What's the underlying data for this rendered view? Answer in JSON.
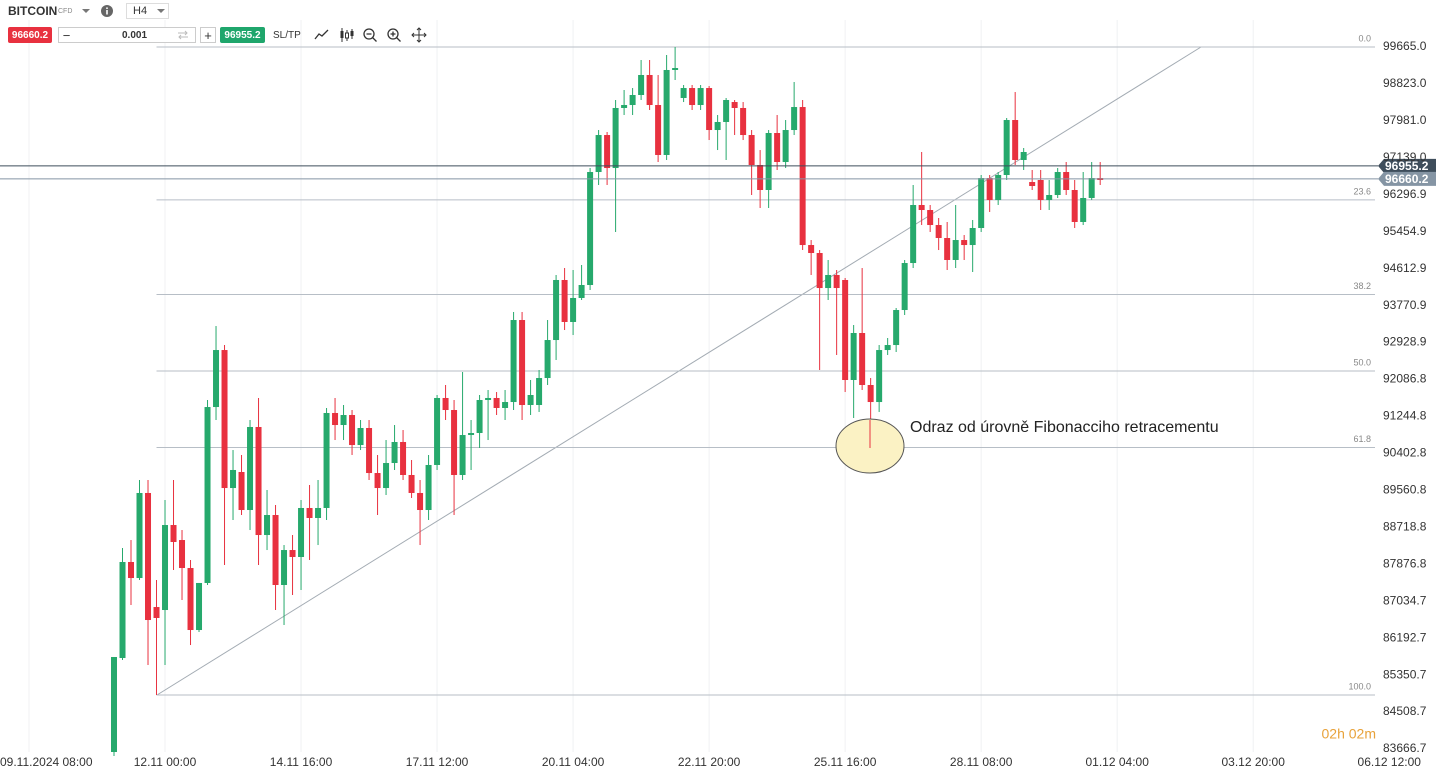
{
  "chart_data": {
    "type": "candlestick",
    "up_color": "#26a96c",
    "down_color": "#e8313f",
    "open": [
      83598,
      85740,
      87928,
      87563,
      89501,
      86902,
      86834,
      88771,
      88429,
      87791,
      86378,
      87450,
      91460,
      92759,
      89614,
      89979,
      89113,
      91005,
      88543,
      88999,
      87404,
      88201,
      88042,
      89159,
      88931,
      89159,
      91324,
      91050,
      91278,
      90594,
      90982,
      89956,
      89614,
      90184,
      90663,
      89911,
      89501,
      89113,
      90139,
      91666,
      91392,
      89911,
      90822,
      90868,
      91620,
      91666,
      91438,
      91574,
      93443,
      91506,
      91506,
      92121,
      92987,
      94355,
      93398,
      93945,
      94241,
      96816,
      97659,
      96907,
      98275,
      98343,
      98571,
      99027,
      98343,
      97204,
      99141,
      98503,
      98730,
      98343,
      98730,
      97773,
      97956,
      98411,
      98275,
      97659,
      96976,
      96406,
      97705,
      97044,
      97773,
      98297,
      95152,
      94970,
      94172,
      94469,
      94355,
      92076,
      93147,
      91962,
      91574,
      92759,
      92873,
      93671,
      94742,
      96064,
      95950,
      95608,
      95312,
      94811,
      95266,
      95152,
      95540,
      96679,
      96178,
      96748,
      98001,
      97090,
      96588,
      96634,
      96178,
      96292,
      96816,
      96406,
      95677,
      96224,
      96679
    ],
    "high": [
      85763,
      88247,
      88429,
      89797,
      89797,
      87518,
      89341,
      89797,
      88657,
      87974,
      87450,
      91620,
      93306,
      92873,
      90480,
      90367,
      91164,
      91666,
      89569,
      89227,
      88315,
      88543,
      89341,
      89683,
      89797,
      91438,
      91666,
      91506,
      91392,
      91164,
      91164,
      90367,
      90708,
      91050,
      90936,
      90253,
      89797,
      90367,
      91734,
      91962,
      91620,
      92258,
      91164,
      91734,
      91848,
      91802,
      91848,
      93626,
      93626,
      92076,
      92304,
      93443,
      94469,
      94628,
      94583,
      94697,
      96907,
      97773,
      97728,
      98457,
      98685,
      98730,
      99369,
      99369,
      99027,
      99483,
      99665,
      98799,
      98799,
      98799,
      98776,
      98115,
      98503,
      98457,
      98411,
      97773,
      97317,
      97773,
      98115,
      98001,
      98867,
      98457,
      95266,
      95038,
      94811,
      94583,
      94400,
      93329,
      94628,
      92121,
      92873,
      93033,
      93717,
      94811,
      96520,
      97272,
      96064,
      95768,
      95677,
      96064,
      95380,
      95722,
      96748,
      96748,
      96816,
      98047,
      98639,
      97363,
      96862,
      96862,
      96634,
      96907,
      97044,
      96634,
      96816,
      97044,
      97044
    ],
    "low": [
      83416,
      85695,
      86948,
      87518,
      85581,
      84897,
      85581,
      87746,
      87062,
      86036,
      86333,
      87404,
      91164,
      87860,
      88885,
      88999,
      88657,
      87860,
      88201,
      86834,
      86492,
      87176,
      87290,
      87974,
      88315,
      88885,
      90708,
      90708,
      90367,
      90480,
      89797,
      88999,
      89455,
      90025,
      89797,
      89387,
      88315,
      88885,
      90025,
      91164,
      88999,
      89797,
      90025,
      90526,
      90708,
      91278,
      91164,
      91392,
      91164,
      91278,
      91347,
      91962,
      92532,
      93215,
      93101,
      93899,
      94127,
      96520,
      96520,
      95449,
      98115,
      98115,
      98457,
      98229,
      97044,
      97090,
      98913,
      98411,
      98229,
      98229,
      97545,
      97317,
      97090,
      97659,
      97545,
      96292,
      95996,
      95996,
      96862,
      96907,
      97659,
      95038,
      94469,
      92304,
      93899,
      92646,
      91802,
      91210,
      91848,
      90526,
      91347,
      92646,
      92714,
      93557,
      94628,
      95608,
      95449,
      95038,
      94583,
      94628,
      94811,
      94537,
      95449,
      95905,
      96064,
      96634,
      96976,
      96862,
      96406,
      95950,
      95950,
      96224,
      96292,
      95540,
      95608,
      96178,
      96520
    ],
    "close": [
      85763,
      87928,
      87563,
      89501,
      86606,
      86652,
      88771,
      88384,
      87791,
      86378,
      87450,
      91460,
      92759,
      89614,
      90025,
      89113,
      91005,
      88543,
      88999,
      87404,
      88201,
      88042,
      89159,
      88931,
      89159,
      91324,
      91050,
      91278,
      90594,
      90982,
      89956,
      89614,
      90184,
      90663,
      89911,
      89501,
      89113,
      90139,
      91666,
      91392,
      89911,
      90822,
      90868,
      91620,
      91666,
      91438,
      91574,
      93443,
      91506,
      91734,
      92121,
      92987,
      94355,
      93398,
      93945,
      94241,
      96816,
      97659,
      96907,
      98275,
      98343,
      98571,
      99027,
      98343,
      97204,
      99141,
      99186,
      98730,
      98343,
      98730,
      97773,
      97956,
      98457,
      98275,
      97659,
      96976,
      96406,
      97705,
      97044,
      97773,
      98297,
      95152,
      94970,
      94172,
      94469,
      94172,
      92076,
      93147,
      91962,
      91574,
      92759,
      92873,
      93671,
      94742,
      96064,
      95950,
      95608,
      95312,
      94811,
      95266,
      95152,
      95540,
      96679,
      96178,
      96748,
      98001,
      97090,
      97272,
      96497,
      96178,
      96292,
      96816,
      96406,
      95677,
      96224,
      96679,
      96634
    ],
    "xlim": [
      -13.41,
      155.5
    ],
    "xticks": [
      {
        "value": -10,
        "label": "09.11.2024 08:00"
      },
      {
        "value": 6,
        "label": "12.11 00:00"
      },
      {
        "value": 22,
        "label": "14.11 16:00"
      },
      {
        "value": 38,
        "label": "17.11 12:00"
      },
      {
        "value": 54,
        "label": "20.11 04:00"
      },
      {
        "value": 70,
        "label": "22.11 20:00"
      },
      {
        "value": 86,
        "label": "25.11 16:00"
      },
      {
        "value": 102,
        "label": "28.11 08:00"
      },
      {
        "value": 118,
        "label": "01.12 04:00"
      },
      {
        "value": 134,
        "label": "03.12 20:00"
      },
      {
        "value": 150,
        "label": "06.12 12:00"
      }
    ],
    "ylim": [
      83598,
      100098
    ],
    "yticks": [
      {
        "value": 99665,
        "label": "99665.0"
      },
      {
        "value": 98823,
        "label": "98823.0"
      },
      {
        "value": 97981,
        "label": "97981.0"
      },
      {
        "value": 97139,
        "label": "97139.0"
      },
      96296.9,
      95454.9,
      94612.9,
      93770.9,
      92928.9,
      92086.8,
      91244.8,
      90402.8,
      89560.8,
      88718.8,
      87876.8,
      87034.7,
      86192.7,
      85350.7,
      84508.7,
      83666.7
    ],
    "grid": true,
    "bid": 96660.2,
    "ask": 96955.2,
    "fibonacci": {
      "high": 99665,
      "low": 84897,
      "levels": [
        {
          "value": 0,
          "label": "0.0"
        },
        23.6,
        38.2,
        {
          "value": 50,
          "label": "50.0"
        },
        61.8,
        {
          "value": 100,
          "label": "100.0"
        }
      ]
    },
    "annotation": "Odraz od úrovně Fibonacciho retracementu",
    "countdown": "02h 02m"
  },
  "toolbar": {
    "symbol": "BITCOIN",
    "instrument_type": "CFD",
    "timeframe": "H4",
    "volume": 0.001,
    "sl_tp": "SL/TP"
  }
}
